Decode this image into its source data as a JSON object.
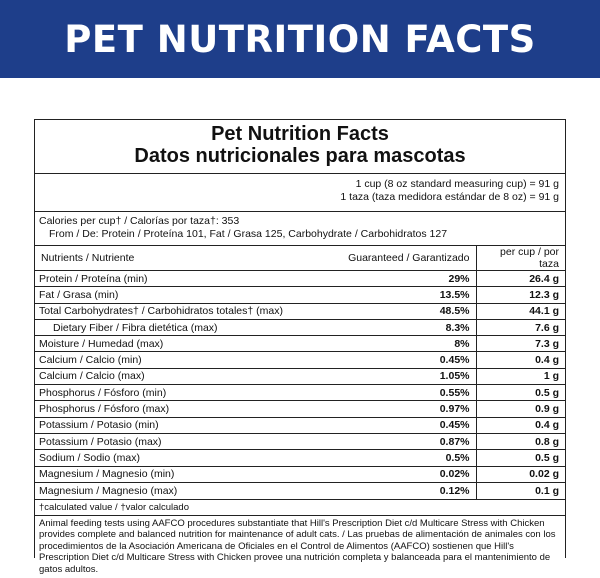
{
  "banner": {
    "title": "PET NUTRITION FACTS",
    "color": "#1e3e8a"
  },
  "panel": {
    "title_en": "Pet Nutrition Facts",
    "title_es": "Datos nutricionales para mascotas",
    "serving_en": "1 cup (8 oz standard measuring cup) = 91 g",
    "serving_es": "1 taza (taza medidora estándar de 8 oz) = 91 g",
    "calories_line": "Calories per cup† / Calorías por taza†: 353",
    "calories_from": "From / De: Protein / Proteína 101, Fat / Grasa 125, Carbohydrate / Carbohidratos 127",
    "header": {
      "nutrients": "Nutrients / Nutriente",
      "guaranteed": "Guaranteed / Garantizado",
      "per_cup": "per cup / por taza"
    },
    "rows": [
      {
        "name": "Protein / Proteína (min)",
        "guaranteed": "29%",
        "per_cup": "26.4 g",
        "indent": false
      },
      {
        "name": "Fat / Grasa (min)",
        "guaranteed": "13.5%",
        "per_cup": "12.3 g",
        "indent": false
      },
      {
        "name": "Total Carbohydrates† / Carbohidratos totales† (max)",
        "guaranteed": "48.5%",
        "per_cup": "44.1 g",
        "indent": false
      },
      {
        "name": "Dietary Fiber / Fibra dietética (max)",
        "guaranteed": "8.3%",
        "per_cup": "7.6 g",
        "indent": true
      },
      {
        "name": "Moisture / Humedad (max)",
        "guaranteed": "8%",
        "per_cup": "7.3 g",
        "indent": false
      },
      {
        "name": "Calcium / Calcio (min)",
        "guaranteed": "0.45%",
        "per_cup": "0.4 g",
        "indent": false
      },
      {
        "name": "Calcium / Calcio (max)",
        "guaranteed": "1.05%",
        "per_cup": "1 g",
        "indent": false
      },
      {
        "name": "Phosphorus / Fósforo (min)",
        "guaranteed": "0.55%",
        "per_cup": "0.5 g",
        "indent": false
      },
      {
        "name": "Phosphorus / Fósforo (max)",
        "guaranteed": "0.97%",
        "per_cup": "0.9 g",
        "indent": false
      },
      {
        "name": "Potassium / Potasio (min)",
        "guaranteed": "0.45%",
        "per_cup": "0.4 g",
        "indent": false
      },
      {
        "name": "Potassium / Potasio (max)",
        "guaranteed": "0.87%",
        "per_cup": "0.8 g",
        "indent": false
      },
      {
        "name": "Sodium / Sodio (max)",
        "guaranteed": "0.5%",
        "per_cup": "0.5 g",
        "indent": false
      },
      {
        "name": "Magnesium / Magnesio (min)",
        "guaranteed": "0.02%",
        "per_cup": "0.02 g",
        "indent": false
      },
      {
        "name": "Magnesium / Magnesio (max)",
        "guaranteed": "0.12%",
        "per_cup": "0.1 g",
        "indent": false
      }
    ],
    "footnote": "†calculated value / †valor calculado",
    "statement": "Animal feeding tests using AAFCO procedures substantiate that Hill's Prescription Diet c/d Multicare Stress with Chicken provides complete and balanced nutrition for maintenance of adult cats. / Las pruebas de alimentación de animales con los procedimientos de la Asociación Americana de Oficiales en el Control de Alimentos (AAFCO) sostienen que Hill's Prescription Diet c/d Multicare Stress with Chicken provee una nutrición completa y balanceada para el mantenimiento de gatos adultos."
  }
}
